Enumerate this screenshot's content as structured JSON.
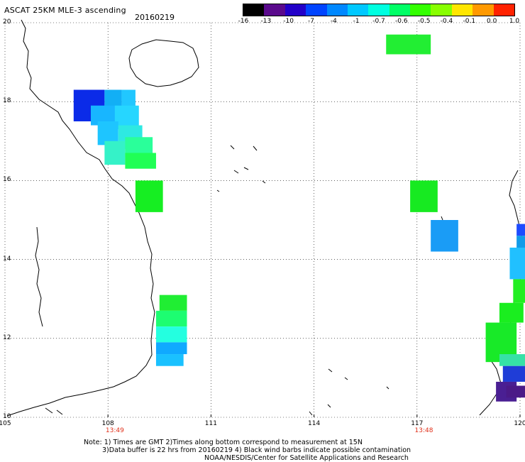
{
  "header": {
    "title": "ASCAT 25KM MLE-3 ascending",
    "date": "20160219"
  },
  "colorbar": {
    "labels": [
      "-16",
      "-13",
      "-10",
      "-7",
      "-4",
      "-1",
      "-0.7",
      "-0.6",
      "-0.5",
      "-0.4",
      "-0.1",
      "0.0",
      "1.0"
    ],
    "colors": [
      "#000000",
      "#5a0a8c",
      "#2200c8",
      "#0044ff",
      "#0088ff",
      "#00c8ff",
      "#00ffe0",
      "#00ff66",
      "#33ff00",
      "#88ff00",
      "#ffe600",
      "#ff9900",
      "#ff2200"
    ]
  },
  "map": {
    "lon_min": 105,
    "lon_max": 120,
    "lat_min": 10,
    "lat_max": 20,
    "lon_ticks": [
      "105",
      "108",
      "111",
      "114",
      "117",
      "120"
    ],
    "lat_ticks": [
      "20",
      "18",
      "16",
      "14",
      "12",
      "10"
    ],
    "times": [
      {
        "lon": 108.2,
        "text": "13:49"
      },
      {
        "lon": 117.2,
        "text": "13:48"
      }
    ]
  },
  "cells": [
    {
      "lon": 116.1,
      "lat": 19.7,
      "w": 1.3,
      "h": 0.5,
      "color": "#22ee33"
    },
    {
      "lon": 107.0,
      "lat": 18.3,
      "w": 0.9,
      "h": 0.8,
      "color": "#0b2be8"
    },
    {
      "lon": 107.9,
      "lat": 18.3,
      "w": 0.5,
      "h": 0.5,
      "color": "#12aff5"
    },
    {
      "lon": 108.4,
      "lat": 18.3,
      "w": 0.4,
      "h": 0.5,
      "color": "#21c7ff"
    },
    {
      "lon": 107.5,
      "lat": 17.9,
      "w": 0.8,
      "h": 0.5,
      "color": "#18b6ff"
    },
    {
      "lon": 108.2,
      "lat": 17.9,
      "w": 0.7,
      "h": 0.6,
      "color": "#26d6ff"
    },
    {
      "lon": 107.7,
      "lat": 17.5,
      "w": 0.6,
      "h": 0.6,
      "color": "#1ec5ff"
    },
    {
      "lon": 108.3,
      "lat": 17.4,
      "w": 0.7,
      "h": 0.6,
      "color": "#2ee9e2"
    },
    {
      "lon": 107.9,
      "lat": 17.0,
      "w": 0.6,
      "h": 0.6,
      "color": "#35f2c8"
    },
    {
      "lon": 108.5,
      "lat": 17.1,
      "w": 0.8,
      "h": 0.5,
      "color": "#2aff9a"
    },
    {
      "lon": 108.5,
      "lat": 16.7,
      "w": 0.9,
      "h": 0.4,
      "color": "#20ff55"
    },
    {
      "lon": 108.8,
      "lat": 16.0,
      "w": 0.8,
      "h": 0.8,
      "color": "#16ee22"
    },
    {
      "lon": 116.8,
      "lat": 16.0,
      "w": 0.8,
      "h": 0.8,
      "color": "#17ea21"
    },
    {
      "lon": 117.4,
      "lat": 15.0,
      "w": 0.8,
      "h": 0.8,
      "color": "#1a9cf6"
    },
    {
      "lon": 109.5,
      "lat": 13.1,
      "w": 0.8,
      "h": 0.4,
      "color": "#20ee33"
    },
    {
      "lon": 109.4,
      "lat": 12.7,
      "w": 0.9,
      "h": 0.4,
      "color": "#1dfd71"
    },
    {
      "lon": 109.4,
      "lat": 12.3,
      "w": 0.9,
      "h": 0.4,
      "color": "#24ffe0"
    },
    {
      "lon": 109.4,
      "lat": 11.9,
      "w": 0.9,
      "h": 0.3,
      "color": "#10a9ff"
    },
    {
      "lon": 109.4,
      "lat": 11.6,
      "w": 0.8,
      "h": 0.3,
      "color": "#1ac1ff"
    },
    {
      "lon": 119.9,
      "lat": 14.9,
      "w": 0.4,
      "h": 0.3,
      "color": "#1d4bff"
    },
    {
      "lon": 119.9,
      "lat": 14.6,
      "w": 0.3,
      "h": 0.4,
      "color": "#119be9"
    },
    {
      "lon": 119.7,
      "lat": 14.3,
      "w": 0.6,
      "h": 0.8,
      "color": "#21c0ff"
    },
    {
      "lon": 119.8,
      "lat": 13.5,
      "w": 0.5,
      "h": 0.6,
      "color": "#23ee22"
    },
    {
      "lon": 119.4,
      "lat": 12.9,
      "w": 0.7,
      "h": 0.5,
      "color": "#1aee1f"
    },
    {
      "lon": 119.0,
      "lat": 12.4,
      "w": 0.9,
      "h": 1.0,
      "color": "#18ea28"
    },
    {
      "lon": 119.4,
      "lat": 11.6,
      "w": 0.9,
      "h": 0.3,
      "color": "#36e1a6"
    },
    {
      "lon": 119.5,
      "lat": 11.3,
      "w": 0.8,
      "h": 0.4,
      "color": "#1f3dd7"
    },
    {
      "lon": 119.3,
      "lat": 10.9,
      "w": 0.6,
      "h": 0.5,
      "color": "#4a1f93"
    },
    {
      "lon": 119.6,
      "lat": 10.8,
      "w": 0.7,
      "h": 0.3,
      "color": "#4b1a87"
    }
  ],
  "footer": {
    "note_line1": "Note: 1) Times are GMT 2)Times along bottom correspond to measurement at 15N",
    "note_line2": "3)Data buffer is 22 hrs from 20160219 4) Black wind barbs indicate possible contamination",
    "note_line3": "NOAA/NESDIS/Center for Satellite Applications and Research"
  }
}
